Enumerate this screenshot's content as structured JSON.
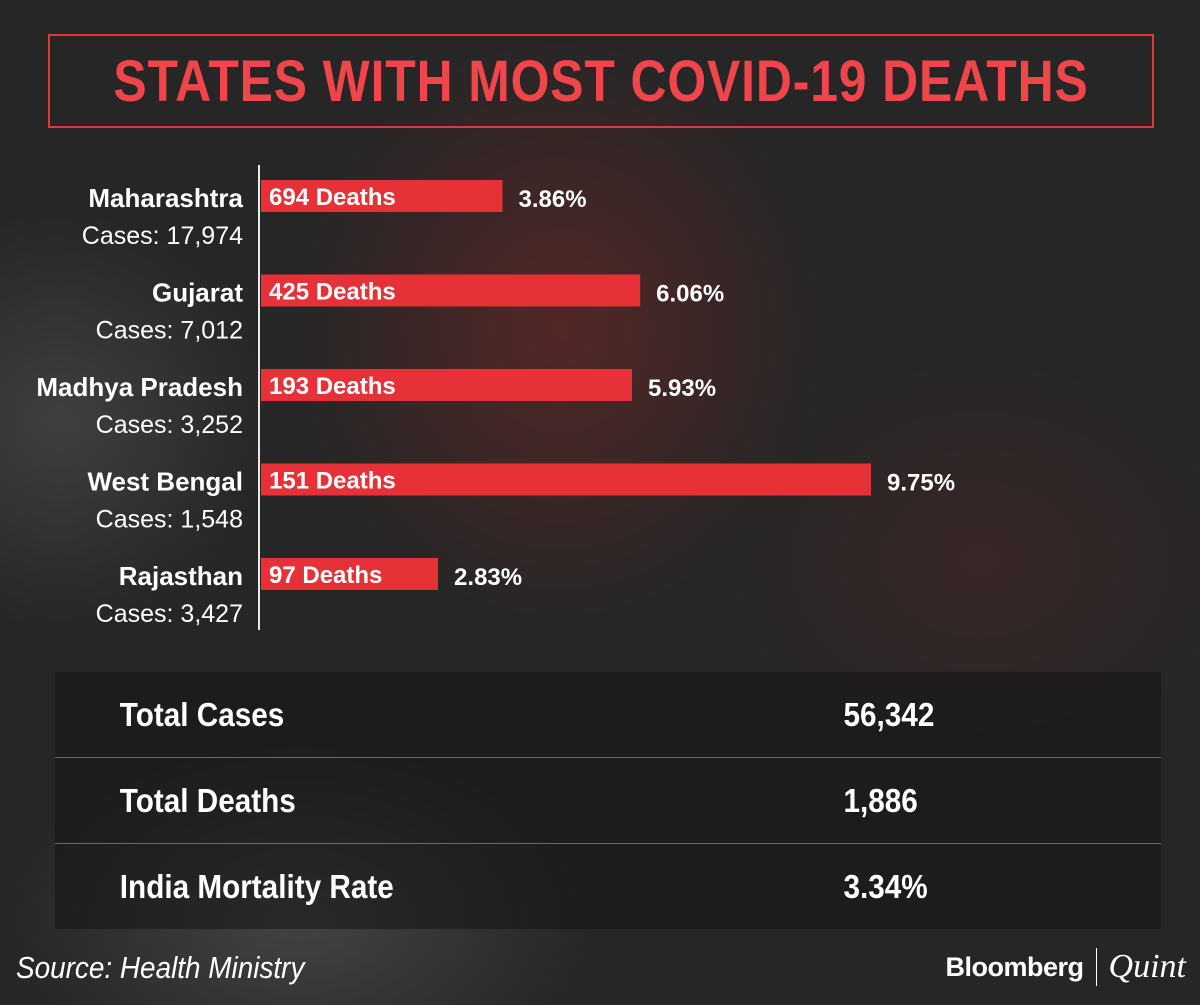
{
  "title": "STATES WITH MOST COVID-19 DEATHS",
  "chart_data": {
    "type": "bar",
    "orientation": "horizontal",
    "categories": [
      "Maharashtra",
      "Gujarat",
      "Madhya Pradesh",
      "West Bengal",
      "Rajasthan"
    ],
    "cases_labels": [
      "Cases: 17,974",
      "Cases: 7,012",
      "Cases: 3,252",
      "Cases: 1,548",
      "Cases: 3,427"
    ],
    "deaths_labels": [
      "694 Deaths",
      "425 Deaths",
      "193 Deaths",
      "151 Deaths",
      "97 Deaths"
    ],
    "rate_labels": [
      "3.86%",
      "6.06%",
      "5.93%",
      "9.75%",
      "2.83%"
    ],
    "values": [
      3.86,
      6.06,
      5.93,
      9.75,
      2.83
    ],
    "deaths": [
      694,
      425,
      193,
      151,
      97
    ],
    "cases": [
      17974,
      7012,
      3252,
      1548,
      3427
    ],
    "xlim": [
      0,
      9.75
    ],
    "bar_color": "#e53137"
  },
  "summary": {
    "rows": [
      {
        "label": "Total Cases",
        "value": "56,342"
      },
      {
        "label": "Total Deaths",
        "value": "1,886"
      },
      {
        "label": "India Mortality Rate",
        "value": "3.34%"
      }
    ]
  },
  "source": "Source: Health Ministry",
  "brand": {
    "left": "Bloomberg",
    "right": "Quint"
  },
  "colors": {
    "accent": "#f0454a",
    "background": "#262626"
  }
}
